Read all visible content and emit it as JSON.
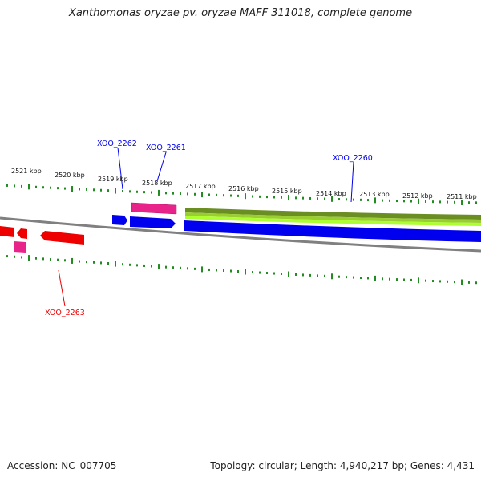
{
  "header": {
    "title": "Xanthomonas oryzae pv. oryzae MAFF 311018, complete genome"
  },
  "footer": {
    "accession": "Accession: NC_007705",
    "summary": "Topology: circular; Length: 4,940,217 bp; Genes: 4,431"
  },
  "map": {
    "kbp_labels": [
      "2521 kbp",
      "2520 kbp",
      "2519 kbp",
      "2518 kbp",
      "2517 kbp",
      "2516 kbp",
      "2515 kbp",
      "2514 kbp",
      "2513 kbp",
      "2512 kbp",
      "2511 kbp"
    ],
    "gene_labels": {
      "xoo_2262": "XOO_2262",
      "xoo_2261": "XOO_2261",
      "xoo_2260": "XOO_2260",
      "xoo_2263": "XOO_2263"
    },
    "colors": {
      "forward_cds": "#0000ee",
      "reverse_cds": "#ee0000",
      "rna_feature": "#e8238a",
      "gc_band_dark": "#6b8e23",
      "gc_band_light": "#adff2f",
      "backbone": "#808080",
      "tick": "#228b22"
    }
  }
}
